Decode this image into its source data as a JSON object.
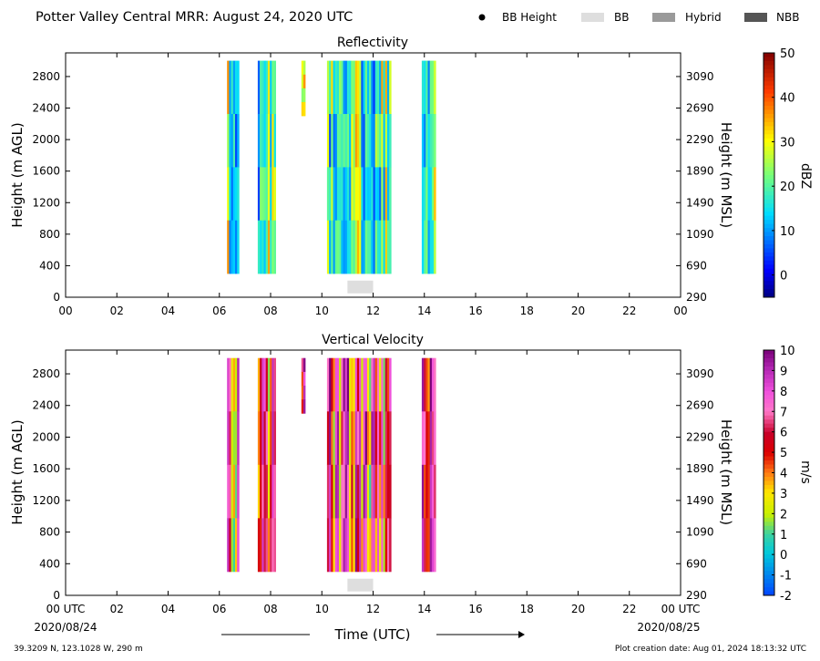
{
  "header": {
    "title": "Potter Valley Central MRR:  August 24, 2020 UTC",
    "legend": [
      {
        "label": "BB Height",
        "symbol": "dot",
        "color": "#000000"
      },
      {
        "label": "BB",
        "symbol": "box",
        "color": "#dedede"
      },
      {
        "label": "Hybrid",
        "symbol": "box",
        "color": "#9a9a9a"
      },
      {
        "label": "NBB",
        "symbol": "box",
        "color": "#555555"
      }
    ]
  },
  "footer": {
    "location": "39.3209 N, 123.1028 W, 290 m",
    "creation": "Plot creation date: Aug 01, 2024 18:13:32 UTC",
    "date_start": "2020/08/24",
    "date_end": "2020/08/25",
    "xlabel": "Time (UTC)"
  },
  "chart_data": [
    {
      "type": "heatmap",
      "title": "Reflectivity",
      "xlabel": "Time (UTC)",
      "ylabel": "Height (m AGL)",
      "ylabel_right": "Height (m MSL)",
      "xlim": [
        0,
        24
      ],
      "ylim": [
        0,
        3100
      ],
      "xticks": [
        "00",
        "02",
        "04",
        "06",
        "08",
        "10",
        "12",
        "14",
        "16",
        "18",
        "20",
        "22",
        "00"
      ],
      "xtick_values": [
        0,
        2,
        4,
        6,
        8,
        10,
        12,
        14,
        16,
        18,
        20,
        22,
        24
      ],
      "yticks": [
        0,
        400,
        800,
        1200,
        1600,
        2000,
        2400,
        2800
      ],
      "yticks_right": [
        290,
        690,
        1090,
        1490,
        1890,
        2290,
        2690,
        3090
      ],
      "colorbar": {
        "label": "dBZ",
        "min": -5,
        "max": 50,
        "ticks": [
          0,
          10,
          20,
          30,
          40,
          50
        ],
        "colormap": "jet"
      },
      "precip_segments": [
        {
          "t0": 6.3,
          "t1": 6.7,
          "z0": 300,
          "z1": 3000
        },
        {
          "t0": 7.5,
          "t1": 8.2,
          "z0": 300,
          "z1": 3000
        },
        {
          "t0": 9.2,
          "t1": 9.3,
          "z0": 2300,
          "z1": 3000
        },
        {
          "t0": 10.2,
          "t1": 12.7,
          "z0": 300,
          "z1": 3000
        },
        {
          "t0": 13.9,
          "t1": 14.4,
          "z0": 300,
          "z1": 3000
        }
      ],
      "bright_band": [
        {
          "t0": 11.0,
          "t1": 12.0,
          "z": 130
        }
      ]
    },
    {
      "type": "heatmap",
      "title": "Vertical Velocity",
      "xlabel": "Time (UTC)",
      "ylabel": "Height (m AGL)",
      "ylabel_right": "Height (m MSL)",
      "xlim": [
        0,
        24
      ],
      "ylim": [
        0,
        3100
      ],
      "xticks": [
        "00 UTC",
        "02",
        "04",
        "06",
        "08",
        "10",
        "12",
        "14",
        "16",
        "18",
        "20",
        "22",
        "00 UTC"
      ],
      "xtick_values": [
        0,
        2,
        4,
        6,
        8,
        10,
        12,
        14,
        16,
        18,
        20,
        22,
        24
      ],
      "yticks": [
        0,
        400,
        800,
        1200,
        1600,
        2000,
        2400,
        2800
      ],
      "yticks_right": [
        290,
        690,
        1090,
        1490,
        1890,
        2290,
        2690,
        3090
      ],
      "colorbar": {
        "label": "m/s",
        "min": -2,
        "max": 10,
        "ticks": [
          -2,
          -1,
          0,
          1,
          2,
          3,
          4,
          5,
          6,
          7,
          8,
          9,
          10
        ],
        "colormap": "velocity"
      },
      "precip_segments": [
        {
          "t0": 6.3,
          "t1": 6.7,
          "z0": 300,
          "z1": 3000
        },
        {
          "t0": 7.5,
          "t1": 8.2,
          "z0": 300,
          "z1": 3000
        },
        {
          "t0": 9.2,
          "t1": 9.3,
          "z0": 2300,
          "z1": 3000
        },
        {
          "t0": 10.2,
          "t1": 12.7,
          "z0": 300,
          "z1": 3000
        },
        {
          "t0": 13.9,
          "t1": 14.4,
          "z0": 300,
          "z1": 3000
        }
      ],
      "bright_band": [
        {
          "t0": 11.0,
          "t1": 12.0,
          "z": 130
        }
      ]
    }
  ]
}
